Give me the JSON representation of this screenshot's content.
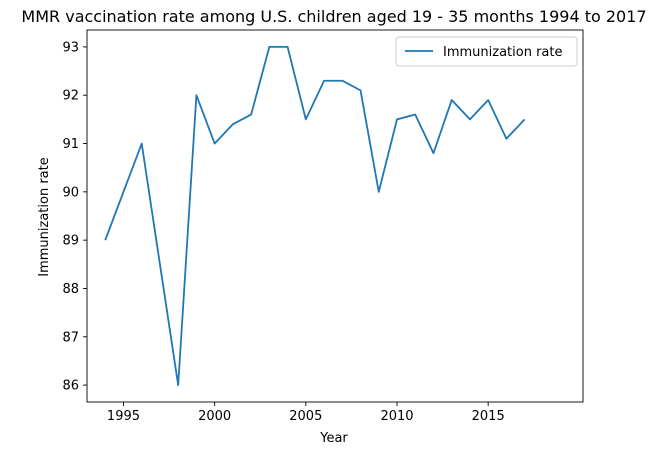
{
  "chart_data": {
    "type": "line",
    "title": "MMR vaccination rate among U.S. children aged 19 - 35 months 1994 to 2017",
    "xlabel": "Year",
    "ylabel": "Immunization rate",
    "xlim": [
      1993,
      2020.2
    ],
    "ylim": [
      85.65,
      93.35
    ],
    "xticks": [
      1995,
      2000,
      2005,
      2010,
      2015
    ],
    "yticks": [
      86,
      87,
      88,
      89,
      90,
      91,
      92,
      93
    ],
    "grid": false,
    "legend_position": "top-right",
    "series": [
      {
        "name": "Immunization rate",
        "color": "#1f77b4",
        "x": [
          1994,
          1996,
          1998,
          1999,
          2000,
          2001,
          2002,
          2003,
          2004,
          2005,
          2006,
          2007,
          2008,
          2009,
          2010,
          2011,
          2012,
          2013,
          2014,
          2015,
          2016,
          2017
        ],
        "y": [
          89.0,
          91.0,
          86.0,
          92.0,
          91.0,
          91.4,
          91.6,
          93.0,
          93.0,
          91.5,
          92.3,
          92.3,
          92.1,
          90.0,
          91.5,
          91.6,
          90.8,
          91.9,
          91.5,
          91.9,
          91.1,
          91.5
        ]
      }
    ]
  }
}
